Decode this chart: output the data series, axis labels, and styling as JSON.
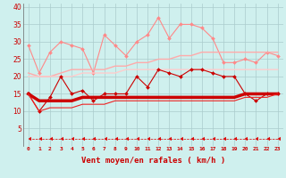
{
  "background_color": "#cff0ee",
  "grid_color": "#aacccc",
  "xlabel": "Vent moyen/en rafales ( km/h )",
  "xlabel_color": "#cc0000",
  "x": [
    0,
    1,
    2,
    3,
    4,
    5,
    6,
    7,
    8,
    9,
    10,
    11,
    12,
    13,
    14,
    15,
    16,
    17,
    18,
    19,
    20,
    21,
    22,
    23
  ],
  "ylim": [
    0,
    41
  ],
  "yticks": [
    5,
    10,
    15,
    20,
    25,
    30,
    35,
    40
  ],
  "series": [
    {
      "name": "max_rafales_jagged",
      "y": [
        29,
        21,
        27,
        30,
        29,
        28,
        21,
        32,
        29,
        26,
        30,
        32,
        37,
        31,
        35,
        35,
        34,
        31,
        24,
        24,
        25,
        24,
        27,
        26
      ],
      "color": "#ff8888",
      "linewidth": 0.8,
      "marker": "D",
      "markersize": 2.0,
      "linestyle": "-"
    },
    {
      "name": "moy_rafales_smooth",
      "y": [
        21,
        20,
        20,
        21,
        22,
        22,
        22,
        22,
        23,
        23,
        24,
        24,
        25,
        25,
        26,
        26,
        27,
        27,
        27,
        27,
        27,
        27,
        27,
        27
      ],
      "color": "#ffaaaa",
      "linewidth": 1.0,
      "marker": null,
      "linestyle": "-"
    },
    {
      "name": "min_rafales_smooth",
      "y": [
        20,
        20,
        20,
        20,
        20,
        21,
        21,
        21,
        21,
        22,
        22,
        22,
        22,
        22,
        22,
        22,
        22,
        22,
        22,
        22,
        22,
        22,
        22,
        22
      ],
      "color": "#ffcccc",
      "linewidth": 1.0,
      "marker": null,
      "linestyle": "-"
    },
    {
      "name": "max_vent_jagged",
      "y": [
        15,
        10,
        14,
        20,
        15,
        16,
        13,
        15,
        15,
        15,
        20,
        17,
        22,
        21,
        20,
        22,
        22,
        21,
        20,
        20,
        15,
        13,
        15,
        15
      ],
      "color": "#cc0000",
      "linewidth": 0.8,
      "marker": "D",
      "markersize": 2.0,
      "linestyle": "-"
    },
    {
      "name": "moy_vent_thick",
      "y": [
        15,
        13,
        13,
        13,
        13,
        14,
        14,
        14,
        14,
        14,
        14,
        14,
        14,
        14,
        14,
        14,
        14,
        14,
        14,
        14,
        15,
        15,
        15,
        15
      ],
      "color": "#cc0000",
      "linewidth": 2.5,
      "marker": null,
      "linestyle": "-"
    },
    {
      "name": "min_vent_smooth",
      "y": [
        15,
        10,
        11,
        11,
        11,
        12,
        12,
        12,
        13,
        13,
        13,
        13,
        13,
        13,
        13,
        13,
        13,
        13,
        13,
        13,
        14,
        14,
        14,
        15
      ],
      "color": "#ee2222",
      "linewidth": 0.8,
      "marker": null,
      "linestyle": "-"
    },
    {
      "name": "bottom_arrows",
      "y": [
        2,
        2,
        2,
        2,
        2,
        2,
        2,
        2,
        2,
        2,
        2,
        2,
        2,
        2,
        2,
        2,
        2,
        2,
        2,
        2,
        2,
        2,
        2,
        2
      ],
      "color": "#dd0000",
      "linewidth": 0.5,
      "marker": 4,
      "markersize": 3.0,
      "linestyle": "--"
    }
  ]
}
